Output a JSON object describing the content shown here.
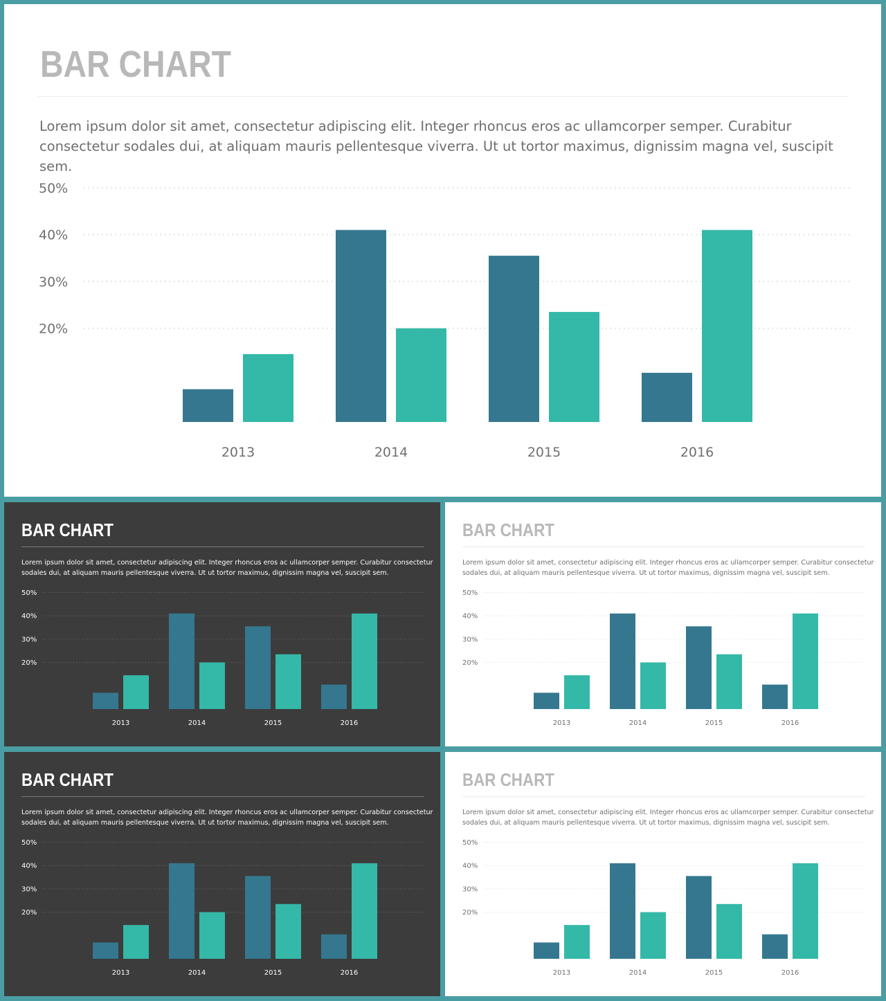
{
  "slide": {
    "title": "BAR CHART",
    "description": "Lorem ipsum dolor sit amet, consectetur adipiscing elit. Integer rhoncus eros ac ullamcorper semper. Curabitur consectetur sodales dui, at aliquam mauris pellentesque viverra. Ut ut tortor maximus, dignissim magna vel, suscipit sem."
  },
  "colors": {
    "frame": "#4a9ea3",
    "series_1": "#35778f",
    "series_2": "#34b8a7",
    "dark_background": "#3c3c3c",
    "light_background": "#ffffff"
  },
  "chart_data": {
    "type": "bar",
    "categories": [
      "2013",
      "2014",
      "2015",
      "2016"
    ],
    "series": [
      {
        "values": [
          7,
          41,
          35.5,
          10.5
        ]
      },
      {
        "values": [
          14.5,
          20,
          23.5,
          41
        ]
      }
    ],
    "y_ticks": [
      20,
      30,
      40,
      50
    ],
    "y_tick_labels": [
      "20%",
      "30%",
      "40%",
      "50%"
    ],
    "ylim": [
      0,
      50
    ],
    "grid": true,
    "gridline_style": "dotted"
  }
}
